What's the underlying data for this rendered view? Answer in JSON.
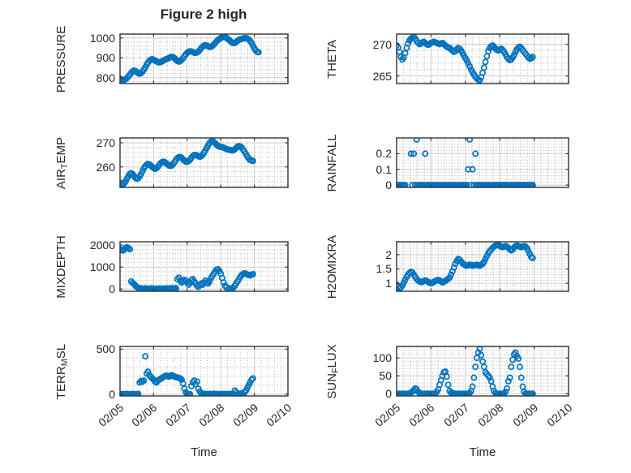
{
  "figure": {
    "title": "Figure 2 high",
    "xlabel": "Time",
    "xticklabels": [
      "02/05",
      "02/06",
      "02/07",
      "02/08",
      "02/09",
      "02/10"
    ],
    "colors": {
      "marker": "#0072BD",
      "grid_major": "#cccccc",
      "grid_minor": "#b5b5b5",
      "box": "#333333",
      "text": "#262626",
      "background": "#ffffff"
    }
  },
  "chart_data": [
    {
      "type": "scatter",
      "key": "pressure",
      "row": 0,
      "col": 0,
      "ylabel": {
        "pre": "PRESSURE",
        "sub": "",
        "post": ""
      },
      "ylim": [
        770,
        1020
      ],
      "yticks": [
        800,
        900,
        1000
      ],
      "ytick_labels": [
        "800",
        "900",
        "1000"
      ],
      "x_unit": "days after 02/05",
      "x0": 0,
      "dx_days": 0.0416667,
      "y": [
        795,
        790,
        788,
        789,
        792,
        798,
        806,
        815,
        824,
        832,
        836,
        834,
        828,
        822,
        820,
        823,
        830,
        840,
        852,
        865,
        876,
        885,
        891,
        893,
        890,
        886,
        882,
        879,
        877,
        878,
        882,
        887,
        890,
        893,
        896,
        900,
        903,
        905,
        903,
        898,
        890,
        884,
        881,
        884,
        890,
        898,
        908,
        918,
        926,
        931,
        933,
        932,
        929,
        926,
        925,
        927,
        932,
        940,
        949,
        957,
        962,
        964,
        962,
        958,
        955,
        956,
        960,
        967,
        975,
        983,
        990,
        996,
        1000,
        1003,
        1005,
        1004,
        1001,
        996,
        990,
        983,
        977,
        974,
        975,
        980,
        986,
        991,
        994,
        996,
        998,
        1000,
        1000,
        997,
        992,
        985,
        975,
        962,
        948,
        938,
        930,
        928
      ]
    },
    {
      "type": "scatter",
      "key": "theta",
      "row": 0,
      "col": 1,
      "ylabel": {
        "pre": "THETA",
        "sub": "",
        "post": ""
      },
      "ylim": [
        263.8,
        271.6
      ],
      "yticks": [
        265,
        270
      ],
      "ytick_labels": [
        "265",
        "270"
      ],
      "x_unit": "days after 02/05",
      "x0": 0,
      "dx_days": 0.0416667,
      "y": [
        269.8,
        269.5,
        268.8,
        268.0,
        267.6,
        267.9,
        268.6,
        269.4,
        270.1,
        270.6,
        270.9,
        271.0,
        271.2,
        270.9,
        270.5,
        270.2,
        270.0,
        270.1,
        270.3,
        270.4,
        270.2,
        270.0,
        269.9,
        270.0,
        270.2,
        270.3,
        270.4,
        270.3,
        270.2,
        270.1,
        270.0,
        270.1,
        270.2,
        270.0,
        269.8,
        269.6,
        269.5,
        269.4,
        269.2,
        269.0,
        268.8,
        268.9,
        269.2,
        269.4,
        269.3,
        269.0,
        268.6,
        268.2,
        267.8,
        267.4,
        267.0,
        266.5,
        266.0,
        265.6,
        265.2,
        264.9,
        264.6,
        264.4,
        264.3,
        264.8,
        265.5,
        266.3,
        267.2,
        268.1,
        268.9,
        269.4,
        269.7,
        269.8,
        269.6,
        269.3,
        269.1,
        269.0,
        269.2,
        269.3,
        269.1,
        268.8,
        268.4,
        268.0,
        267.7,
        267.5,
        267.6,
        267.9,
        268.3,
        268.8,
        269.2,
        269.5,
        269.6,
        269.4,
        269.1,
        268.8,
        268.5,
        268.2,
        267.9,
        267.7,
        267.8,
        268.0
      ]
    },
    {
      "type": "scatter",
      "key": "airtemp",
      "row": 1,
      "col": 0,
      "ylabel": {
        "pre": "AIR",
        "sub": "T",
        "post": "EMP"
      },
      "ylim": [
        251.5,
        272
      ],
      "yticks": [
        260,
        270
      ],
      "ytick_labels": [
        "260",
        "270"
      ],
      "x_unit": "days after 02/05",
      "x0": 0,
      "dx_days": 0.0416667,
      "y": [
        253.5,
        253.0,
        252.8,
        253.2,
        254.0,
        255.2,
        256.3,
        257.1,
        257.4,
        257.0,
        256.2,
        255.5,
        255.1,
        255.3,
        256.0,
        257.0,
        258.2,
        259.4,
        260.3,
        260.9,
        261.2,
        261.0,
        260.5,
        260.0,
        259.5,
        259.2,
        259.4,
        260.0,
        260.8,
        261.5,
        262.0,
        262.2,
        262.0,
        261.5,
        261.0,
        260.6,
        260.4,
        260.6,
        261.2,
        262.0,
        262.9,
        263.6,
        264.0,
        264.1,
        263.8,
        263.2,
        262.6,
        262.2,
        262.1,
        262.4,
        263.0,
        263.8,
        264.5,
        264.9,
        265.0,
        264.8,
        264.4,
        264.2,
        264.4,
        265.0,
        265.8,
        266.8,
        267.9,
        269.0,
        269.9,
        270.5,
        270.7,
        270.4,
        269.8,
        269.2,
        268.7,
        268.4,
        268.3,
        268.2,
        268.0,
        267.7,
        267.4,
        267.2,
        267.1,
        267.0,
        266.8,
        266.9,
        267.3,
        267.9,
        268.4,
        268.6,
        268.4,
        267.9,
        267.2,
        266.3,
        265.3,
        264.3,
        263.5,
        262.9,
        262.6,
        262.5
      ]
    },
    {
      "type": "scatter",
      "key": "rainfall",
      "row": 1,
      "col": 1,
      "ylabel": {
        "pre": "RAINFALL",
        "sub": "",
        "post": ""
      },
      "ylim": [
        -0.015,
        0.3
      ],
      "yticks": [
        0,
        0.1,
        0.2
      ],
      "ytick_labels": [
        "0",
        "0.1",
        "0.2"
      ],
      "x_unit": "days after 02/05",
      "x0": 0,
      "dx_days": 0.0416667,
      "y": [
        0,
        0,
        0,
        0,
        0,
        0,
        0,
        null,
        null,
        null,
        0.2,
        0,
        0.2,
        0,
        0.29,
        0,
        0,
        0,
        0,
        0,
        0.2,
        0,
        0,
        0,
        0,
        0,
        0,
        0,
        0,
        0,
        0,
        0,
        0,
        0,
        0,
        0,
        0,
        0,
        0,
        0,
        0,
        0,
        0,
        0,
        0,
        0,
        0,
        0,
        0,
        0,
        0.1,
        0.29,
        0,
        0.1,
        0,
        0.2,
        0,
        0,
        0,
        0,
        0,
        0,
        0,
        0,
        0,
        0,
        0,
        0,
        0,
        0,
        0,
        0,
        0,
        0,
        0,
        0,
        0,
        0,
        0,
        0,
        0,
        0,
        0,
        0,
        0,
        0,
        0,
        0,
        0,
        0,
        0,
        0,
        0,
        0,
        0,
        0
      ]
    },
    {
      "type": "scatter",
      "key": "mixdepth",
      "row": 2,
      "col": 0,
      "ylabel": {
        "pre": "MIXDEPTH",
        "sub": "",
        "post": ""
      },
      "ylim": [
        -100,
        2150
      ],
      "yticks": [
        0,
        1000,
        2000
      ],
      "ytick_labels": [
        "0",
        "1000",
        "2000"
      ],
      "x_unit": "days after 02/05",
      "x0": 0,
      "dx_days": 0.0416667,
      "y": [
        1820,
        1780,
        1750,
        1800,
        1870,
        1900,
        1860,
        1810,
        350,
        280,
        230,
        150,
        90,
        60,
        40,
        30,
        20,
        25,
        30,
        20,
        15,
        20,
        25,
        30,
        20,
        15,
        10,
        15,
        20,
        25,
        20,
        15,
        20,
        30,
        25,
        20,
        30,
        40,
        35,
        30,
        40,
        450,
        520,
        380,
        300,
        350,
        420,
        380,
        300,
        200,
        280,
        400,
        450,
        350,
        250,
        150,
        100,
        180,
        250,
        200,
        300,
        380,
        300,
        250,
        350,
        500,
        600,
        700,
        800,
        880,
        900,
        820,
        700,
        500,
        300,
        150,
        80,
        -20,
        40,
        -30,
        10,
        60,
        150,
        250,
        350,
        450,
        560,
        640,
        690,
        720,
        700,
        660,
        640,
        620,
        650,
        680
      ]
    },
    {
      "type": "scatter",
      "key": "h2omixra",
      "row": 2,
      "col": 1,
      "ylabel": {
        "pre": "H2OMIXRA",
        "sub": "",
        "post": ""
      },
      "ylim": [
        0.72,
        2.45
      ],
      "yticks": [
        1,
        1.5,
        2
      ],
      "ytick_labels": [
        "1",
        "1.5",
        "2"
      ],
      "x_unit": "days after 02/05",
      "x0": 0,
      "dx_days": 0.0416667,
      "y": [
        0.95,
        0.88,
        0.82,
        0.85,
        0.92,
        1.02,
        1.12,
        1.22,
        1.3,
        1.36,
        1.4,
        1.38,
        1.3,
        1.22,
        1.15,
        1.1,
        1.06,
        1.04,
        1.05,
        1.08,
        1.1,
        1.08,
        1.05,
        1.02,
        1.0,
        1.02,
        1.05,
        1.08,
        1.1,
        1.12,
        1.1,
        1.06,
        1.03,
        1.05,
        1.08,
        1.12,
        1.15,
        1.2,
        1.3,
        1.42,
        1.55,
        1.68,
        1.78,
        1.85,
        1.82,
        1.76,
        1.7,
        1.66,
        1.63,
        1.62,
        1.63,
        1.65,
        1.64,
        1.62,
        1.63,
        1.64,
        1.65,
        1.63,
        1.62,
        1.64,
        1.68,
        1.75,
        1.85,
        1.95,
        2.05,
        2.12,
        2.18,
        2.24,
        2.28,
        2.32,
        2.34,
        2.33,
        2.3,
        2.28,
        2.26,
        2.28,
        2.3,
        2.28,
        2.24,
        2.18,
        2.15,
        2.18,
        2.25,
        2.3,
        2.32,
        2.3,
        2.28,
        2.26,
        2.28,
        2.3,
        2.28,
        2.22,
        2.12,
        2.02,
        1.92,
        1.88
      ]
    },
    {
      "type": "scatter",
      "key": "terrmsl",
      "row": 3,
      "col": 0,
      "ylabel": {
        "pre": "TERR",
        "sub": "M",
        "post": "SL"
      },
      "ylim": [
        -20,
        530
      ],
      "yticks": [
        0,
        500
      ],
      "ytick_labels": [
        "0",
        "500"
      ],
      "x_unit": "days after 02/05",
      "x0": 0,
      "dx_days": 0.0416667,
      "y": [
        0,
        2,
        1,
        0,
        1,
        2,
        0,
        1,
        0,
        2,
        1,
        0,
        1,
        3,
        130,
        145,
        138,
        150,
        420,
        230,
        250,
        210,
        190,
        175,
        160,
        140,
        130,
        150,
        160,
        170,
        180,
        190,
        200,
        205,
        200,
        195,
        205,
        210,
        200,
        195,
        190,
        185,
        180,
        175,
        160,
        120,
        60,
        20,
        5,
        0,
        0,
        90,
        130,
        150,
        110,
        140,
        60,
        30,
        10,
        0,
        5,
        0,
        2,
        0,
        3,
        0,
        2,
        5,
        0,
        3,
        0,
        2,
        0,
        3,
        0,
        2,
        0,
        0,
        3,
        0,
        2,
        0,
        40,
        20,
        0,
        5,
        0,
        10,
        0,
        20,
        40,
        70,
        100,
        130,
        160,
        175
      ]
    },
    {
      "type": "scatter",
      "key": "sunflux",
      "row": 3,
      "col": 1,
      "ylabel": {
        "pre": "SUN",
        "sub": "F",
        "post": "LUX"
      },
      "ylim": [
        -6,
        132
      ],
      "yticks": [
        0,
        50,
        100
      ],
      "ytick_labels": [
        "0",
        "50",
        "100"
      ],
      "x_unit": "days after 02/05",
      "x0": 0,
      "dx_days": 0.0416667,
      "y": [
        0,
        0,
        0,
        0,
        0,
        0,
        0,
        0,
        0,
        0,
        3,
        6,
        10,
        15,
        12,
        6,
        2,
        0,
        0,
        0,
        0,
        0,
        0,
        0,
        0,
        0,
        0,
        0,
        5,
        12,
        25,
        38,
        50,
        60,
        62,
        48,
        25,
        8,
        3,
        2,
        1,
        0,
        0,
        0,
        0,
        0,
        0,
        0,
        0,
        0,
        0,
        2,
        8,
        20,
        45,
        75,
        100,
        115,
        125,
        108,
        90,
        75,
        60,
        55,
        50,
        45,
        35,
        20,
        8,
        2,
        0,
        0,
        0,
        0,
        0,
        0,
        5,
        15,
        35,
        45,
        75,
        95,
        110,
        115,
        105,
        98,
        75,
        45,
        20,
        5,
        0,
        0,
        0,
        0,
        0,
        0
      ]
    }
  ]
}
